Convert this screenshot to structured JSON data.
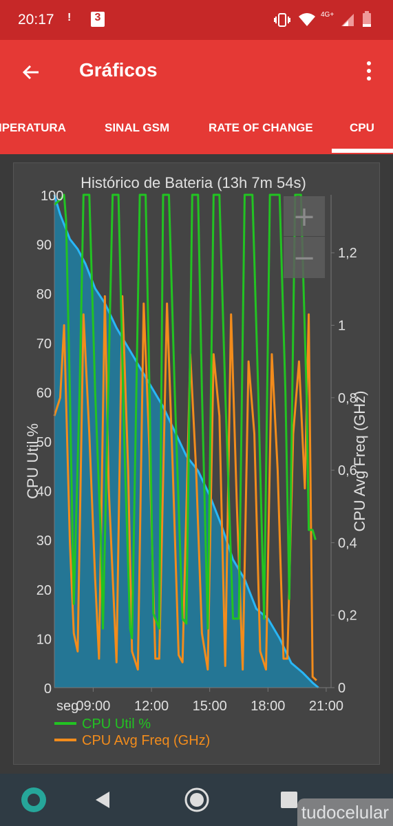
{
  "status_bar": {
    "time": "20:17",
    "notification_badge_1": "!",
    "notification_badge_2": "3",
    "network": "4G+"
  },
  "app_bar": {
    "title": "Gráficos",
    "icons": [
      "back-arrow-icon",
      "more-vert-icon"
    ]
  },
  "tabs": [
    {
      "label": "IPERATURA",
      "selected": false
    },
    {
      "label": "SINAL GSM",
      "selected": false
    },
    {
      "label": "RATE OF CHANGE",
      "selected": false
    },
    {
      "label": "CPU",
      "selected": true
    }
  ],
  "zoom_controls": {
    "plus": "+",
    "minus": "−"
  },
  "chart_data": {
    "type": "line",
    "title": "Histórico de Bateria (13h 7m 54s)",
    "xlabel": "",
    "ylabel_left": "CPU Util %",
    "ylabel_right": "CPU Avg Freq (GHz)",
    "x_ticks": [
      "seg",
      "09:00",
      "12:00",
      "15:00",
      "18:00",
      "21:00"
    ],
    "y_left_ticks": [
      "0",
      "10",
      "20",
      "30",
      "40",
      "50",
      "60",
      "70",
      "80",
      "90",
      "100"
    ],
    "y_right_ticks": [
      "0",
      "0,2",
      "0,4",
      "0,6",
      "0,8",
      "1",
      "1,2"
    ],
    "y_left_range": [
      0,
      100
    ],
    "y_right_range": [
      0,
      1.36
    ],
    "x_range_hours": [
      7.0,
      21.25
    ],
    "legend": [
      {
        "label": "CPU Util %",
        "color": "#22c322"
      },
      {
        "label": "CPU Avg Freq (GHz)",
        "color": "#f28c1c"
      }
    ],
    "series": [
      {
        "name": "CPU Util %",
        "color": "#22c322",
        "axis": "left",
        "x": [
          7.0,
          7.3,
          7.5,
          7.6,
          7.8,
          8.0,
          8.3,
          8.5,
          8.8,
          9.1,
          9.4,
          9.5,
          10.0,
          10.3,
          10.6,
          10.9,
          11.0,
          11.4,
          11.7,
          11.9,
          12.1,
          12.4,
          12.6,
          12.9,
          13.2,
          13.6,
          13.8,
          14.1,
          14.4,
          14.6,
          14.9,
          15.2,
          15.5,
          15.8,
          16.2,
          16.5,
          16.8,
          17.2,
          17.5,
          17.8,
          18.1,
          18.6,
          18.9,
          19.1,
          19.4,
          19.7,
          20.0,
          20.1,
          20.3,
          20.45
        ],
        "y": [
          98,
          99,
          100,
          95,
          60,
          17,
          60,
          100,
          100,
          60,
          30,
          12,
          100,
          100,
          50,
          12,
          10,
          100,
          100,
          60,
          15,
          12,
          100,
          100,
          60,
          14,
          13,
          100,
          100,
          60,
          12,
          100,
          100,
          60,
          14,
          14,
          100,
          100,
          60,
          14,
          100,
          100,
          60,
          18,
          100,
          100,
          58,
          32,
          32,
          30
        ]
      },
      {
        "name": "CPU Avg Freq (GHz)",
        "color": "#f28c1c",
        "axis": "right",
        "x": [
          7.0,
          7.3,
          7.5,
          7.8,
          8.0,
          8.2,
          8.5,
          8.8,
          9.1,
          9.3,
          9.6,
          9.8,
          10.2,
          10.5,
          10.8,
          11.0,
          11.3,
          11.6,
          11.9,
          12.2,
          12.4,
          12.8,
          13.1,
          13.4,
          13.6,
          14.0,
          14.3,
          14.6,
          14.9,
          15.2,
          15.5,
          15.8,
          16.1,
          16.4,
          16.7,
          17.0,
          17.3,
          17.6,
          17.9,
          18.2,
          18.5,
          18.8,
          19.0,
          19.3,
          19.6,
          19.9,
          20.1,
          20.3,
          20.5
        ],
        "y": [
          0.75,
          0.8,
          1.0,
          0.4,
          0.15,
          0.1,
          1.03,
          0.7,
          0.3,
          0.08,
          1.08,
          0.55,
          0.07,
          1.08,
          0.6,
          0.1,
          0.05,
          1.06,
          0.65,
          0.08,
          0.08,
          1.06,
          0.6,
          0.09,
          0.07,
          0.92,
          0.6,
          0.15,
          0.05,
          0.92,
          0.75,
          0.06,
          1.03,
          0.5,
          0.05,
          0.9,
          0.7,
          0.1,
          0.05,
          0.92,
          0.6,
          0.08,
          0.08,
          0.7,
          0.9,
          0.55,
          1.03,
          0.03,
          0.02
        ]
      },
      {
        "name": "Battery",
        "color": "#29b6f6",
        "axis": "left",
        "x": [
          7.0,
          7.3,
          7.8,
          8.2,
          8.6,
          9.1,
          9.6,
          10.2,
          10.8,
          11.4,
          12.0,
          12.6,
          13.2,
          13.8,
          14.4,
          15.0,
          15.6,
          16.2,
          16.8,
          17.4,
          18.0,
          18.6,
          19.2,
          19.8,
          20.3,
          20.6
        ],
        "y": [
          100,
          96,
          91,
          89,
          86,
          81,
          78,
          73,
          69,
          65,
          61,
          57,
          52,
          47,
          44,
          39,
          33,
          26,
          22,
          16,
          14,
          10,
          5,
          3,
          1,
          0
        ]
      }
    ]
  }
}
